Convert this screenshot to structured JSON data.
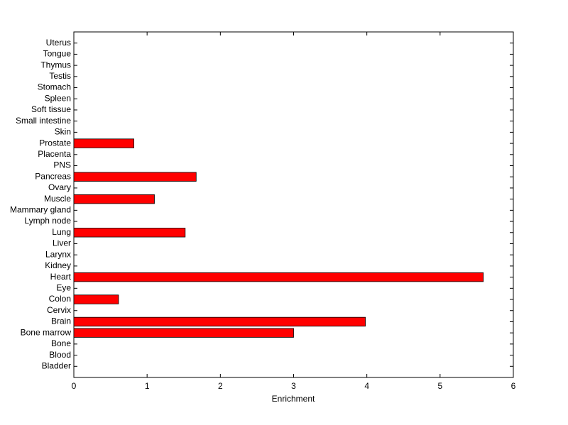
{
  "chart_data": {
    "type": "barh",
    "xlabel": "Enrichment",
    "categories": [
      "Bladder",
      "Blood",
      "Bone",
      "Bone marrow",
      "Brain",
      "Cervix",
      "Colon",
      "Eye",
      "Heart",
      "Kidney",
      "Larynx",
      "Liver",
      "Lung",
      "Lymph node",
      "Mammary gland",
      "Muscle",
      "Ovary",
      "Pancreas",
      "PNS",
      "Placenta",
      "Prostate",
      "Skin",
      "Small intestine",
      "Soft tissue",
      "Spleen",
      "Stomach",
      "Testis",
      "Thymus",
      "Tongue",
      "Uterus"
    ],
    "values": [
      0,
      0,
      0,
      3.0,
      3.98,
      0,
      0.61,
      0,
      5.59,
      0,
      0,
      0,
      1.52,
      0,
      0,
      1.1,
      0,
      1.67,
      0,
      0,
      0.82,
      0,
      0,
      0,
      0,
      0,
      0,
      0,
      0,
      0
    ],
    "color": "#ff0000",
    "xlim": [
      0,
      6
    ],
    "xticks": [
      0,
      1,
      2,
      3,
      4,
      5,
      6
    ]
  }
}
